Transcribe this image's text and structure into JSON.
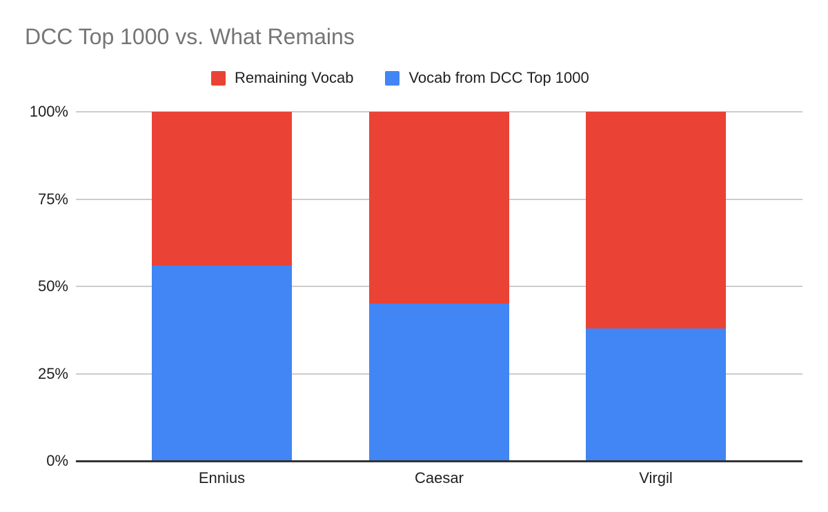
{
  "title": "DCC Top 1000 vs. What Remains",
  "colors": {
    "remaining_vocab": "#EA4335",
    "dcc_top_1000": "#4285F4",
    "gridline": "#CCCCCC",
    "axis_line": "#333333",
    "title_text": "#757575",
    "label_text": "#1F1F1F",
    "legend_text": "#212121",
    "background": "#FFFFFF"
  },
  "legend": {
    "items": [
      {
        "label": "Remaining Vocab",
        "color": "#EA4335"
      },
      {
        "label": "Vocab from DCC Top 1000",
        "color": "#4285F4"
      }
    ]
  },
  "chart_data": {
    "type": "bar",
    "stacked": true,
    "title": "DCC Top 1000 vs. What Remains",
    "categories": [
      "Ennius",
      "Caesar",
      "Virgil"
    ],
    "series": [
      {
        "name": "Vocab from DCC Top 1000",
        "color": "#4285F4",
        "values": [
          56,
          45,
          38
        ]
      },
      {
        "name": "Remaining Vocab",
        "color": "#EA4335",
        "values": [
          44,
          55,
          62
        ]
      }
    ],
    "xlabel": "",
    "ylabel": "",
    "ylim": [
      0,
      100
    ],
    "yticks": [
      0,
      25,
      50,
      75,
      100
    ],
    "ytick_labels": [
      "0%",
      "25%",
      "50%",
      "75%",
      "100%"
    ],
    "grid": true,
    "legend_position": "top"
  }
}
